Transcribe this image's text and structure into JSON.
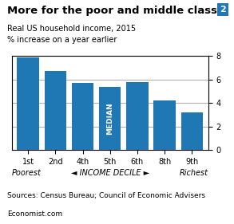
{
  "chart_data": {
    "type": "bar",
    "title": "More for the poor and middle class",
    "title_number": "2",
    "subtitle": [
      "Real US household income, 2015",
      "% increase on a year earlier"
    ],
    "categories": [
      "1st",
      "2nd",
      "4th",
      "5th",
      "6th",
      "8th",
      "9th"
    ],
    "values": [
      7.9,
      6.7,
      5.7,
      5.4,
      5.75,
      4.2,
      3.2
    ],
    "ylim": [
      0,
      8
    ],
    "yticks": [
      0,
      2,
      4,
      6,
      8
    ],
    "grid": true,
    "annotations": [
      {
        "text": "MEDIAN",
        "category": "5th"
      }
    ],
    "xlabel": "◄ INCOME DECILE ►",
    "xlabel_left": "Poorest",
    "xlabel_right": "Richest",
    "source": "Sources: Census Bureau; Council of Economic Advisers",
    "footer": "Economist.com"
  }
}
